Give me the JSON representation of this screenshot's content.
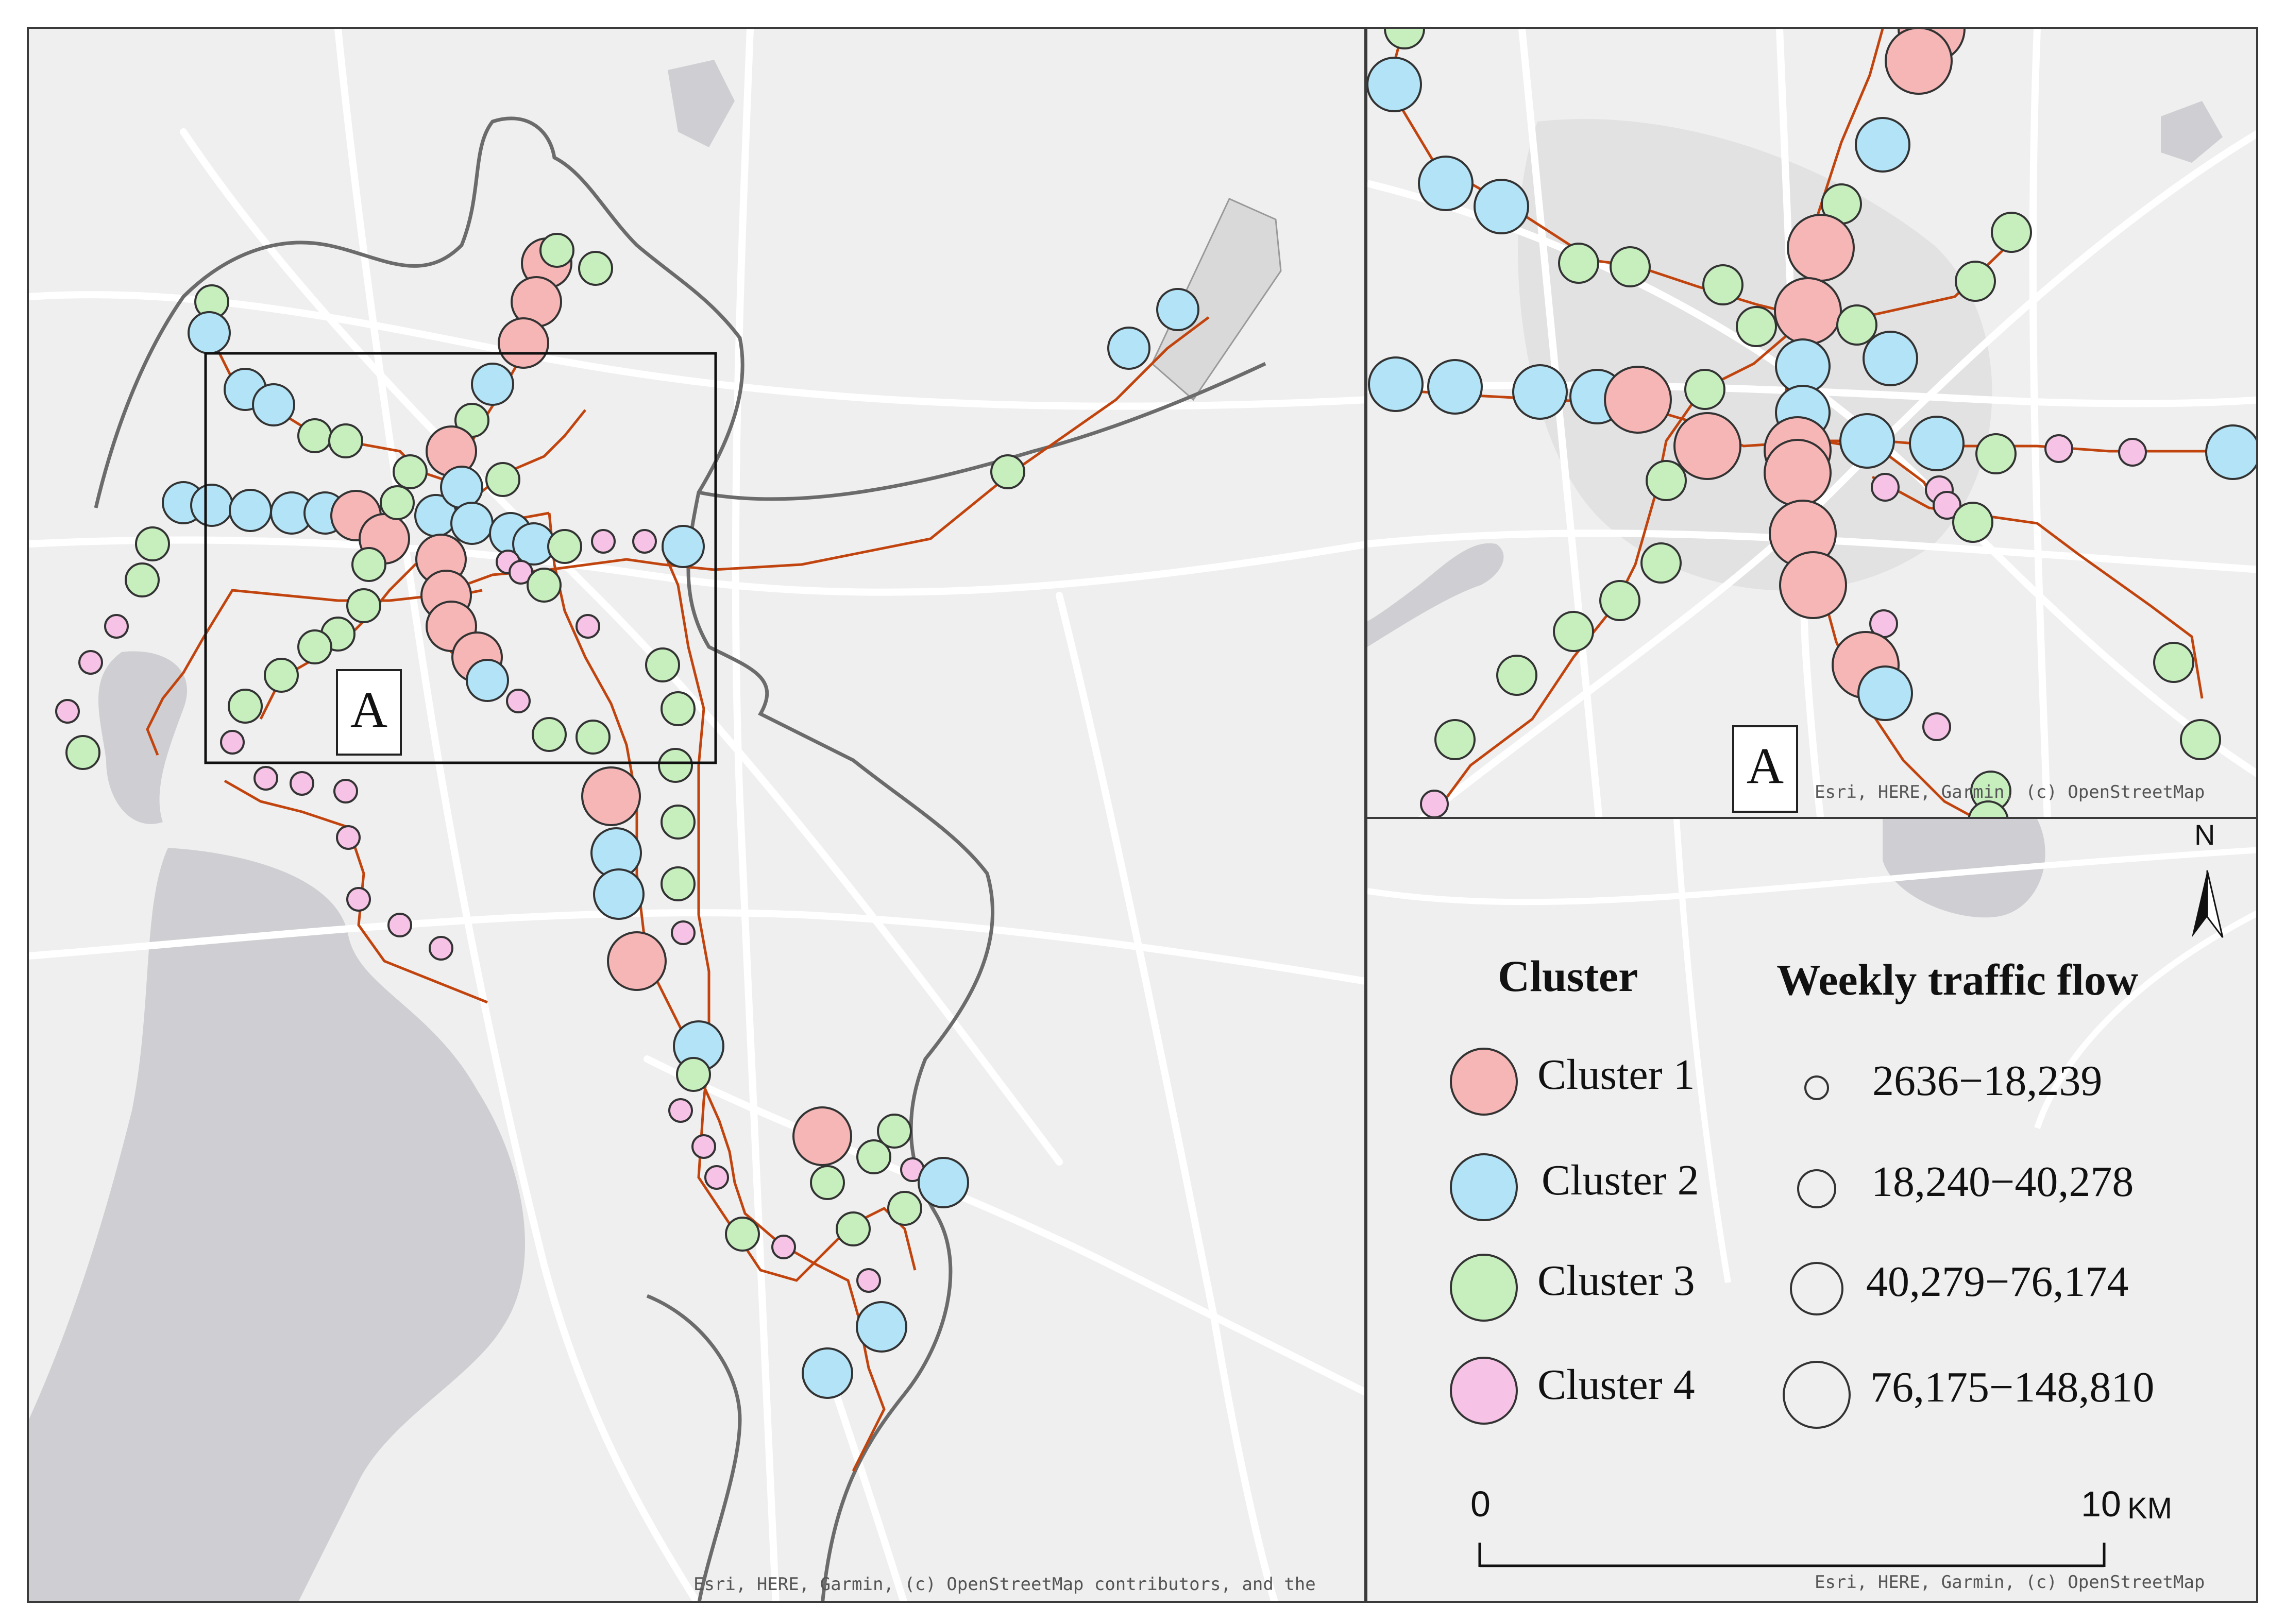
{
  "inset_label": "A",
  "attribution": {
    "main": "Esri, HERE, Garmin, (c) OpenStreetMap contributors, and the",
    "inset": "Esri, HERE, Garmin, (c) OpenStreetMap",
    "legend": "Esri, HERE, Garmin, (c) OpenStreetMap"
  },
  "north_label": "N",
  "legend": {
    "cluster_title": "Cluster",
    "flow_title": "Weekly traffic flow",
    "clusters": [
      {
        "label": "Cluster 1",
        "color": "#f6b6b6"
      },
      {
        "label": "Cluster 2",
        "color": "#b3e3f6"
      },
      {
        "label": "Cluster 3",
        "color": "#c6efbd"
      },
      {
        "label": "Cluster 4",
        "color": "#f6c3e6"
      }
    ],
    "flow_classes": [
      {
        "label": "2636−18,239"
      },
      {
        "label": "18,240−40,278"
      },
      {
        "label": "40,279−76,174"
      },
      {
        "label": "76,175−148,810"
      }
    ]
  },
  "scale_bar": {
    "start": "0",
    "end": "10",
    "unit": "KM"
  },
  "colors": {
    "line": "#c1440e",
    "water": "#cfcfd3",
    "land": "#efefef",
    "road": "#ffffff",
    "boundary": "#6b6b6b"
  }
}
